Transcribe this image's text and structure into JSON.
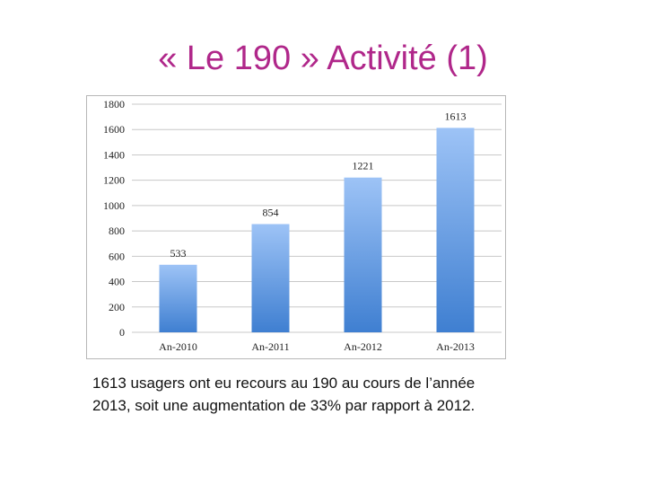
{
  "slide": {
    "title": "« Le 190 » Activité (1)",
    "caption_line1": "1613 usagers ont eu recours au 190 au cours de l’année",
    "caption_line2": "2013, soit une augmentation de 33% par rapport à 2012."
  },
  "chart_data": {
    "type": "bar",
    "categories": [
      "An-2010",
      "An-2011",
      "An-2012",
      "An-2013"
    ],
    "values": [
      533,
      854,
      1221,
      1613
    ],
    "data_labels": [
      "533",
      "854",
      "1221",
      "1613"
    ],
    "ylim": [
      0,
      1800
    ],
    "yticks": [
      0,
      200,
      400,
      600,
      800,
      1000,
      1200,
      1400,
      1600,
      1800
    ],
    "gridlines": true,
    "bar_color_top": "#9dc3f6",
    "bar_color_bottom": "#3f7fd1",
    "grid_color": "#c8c8c8"
  }
}
